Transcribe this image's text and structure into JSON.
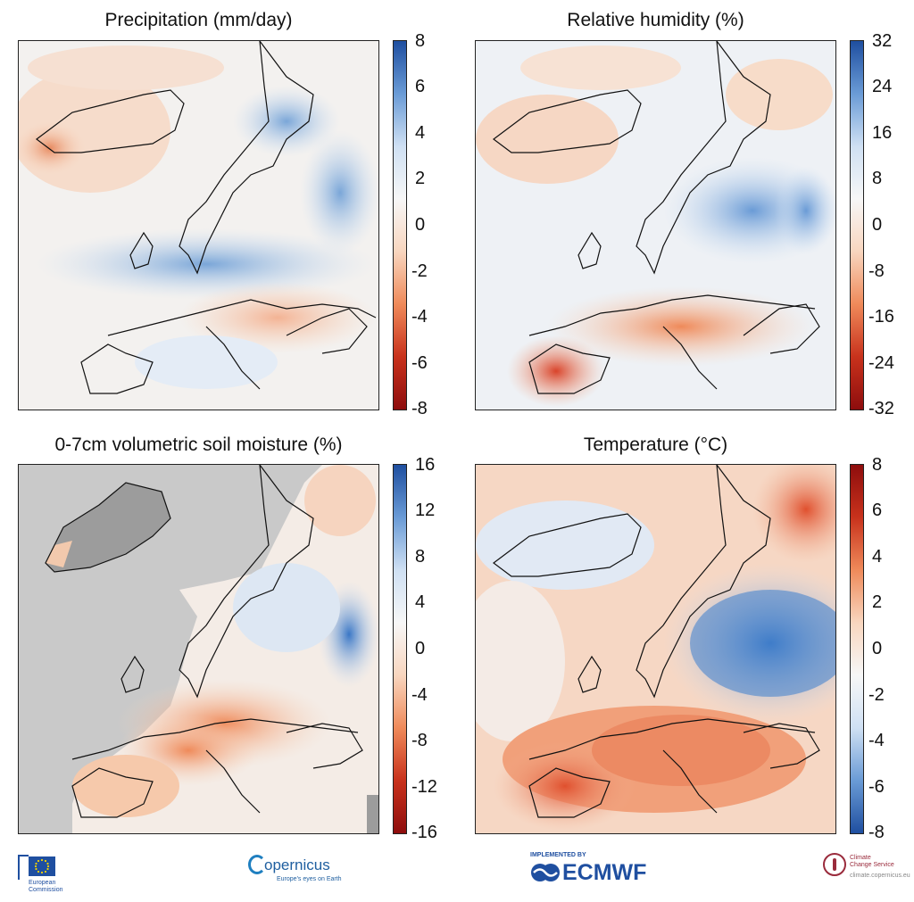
{
  "panels": [
    {
      "id": "precip",
      "title": "Precipitation (mm/day)",
      "colorbar": {
        "ticks": [
          "8",
          "6",
          "4",
          "2",
          "0",
          "-2",
          "-4",
          "-6",
          "-8"
        ],
        "top_color": "#1f4fa0",
        "bottom_color": "#8e0d0d",
        "orientation": "blue-top"
      }
    },
    {
      "id": "rh",
      "title": "Relative humidity (%)",
      "colorbar": {
        "ticks": [
          "32",
          "24",
          "16",
          "8",
          "0",
          "-8",
          "-16",
          "-24",
          "-32"
        ],
        "top_color": "#1f4fa0",
        "bottom_color": "#8e0d0d",
        "orientation": "blue-top"
      }
    },
    {
      "id": "soil",
      "title": "0-7cm volumetric soil moisture (%)",
      "colorbar": {
        "ticks": [
          "16",
          "12",
          "8",
          "4",
          "0",
          "-4",
          "-8",
          "-12",
          "-16"
        ],
        "top_color": "#1f4fa0",
        "bottom_color": "#8e0d0d",
        "orientation": "blue-top"
      }
    },
    {
      "id": "temp",
      "title": "Temperature (°C)",
      "colorbar": {
        "ticks": [
          "8",
          "6",
          "4",
          "2",
          "0",
          "-2",
          "-4",
          "-6",
          "-8"
        ],
        "top_color": "#8e0d0d",
        "bottom_color": "#1f4fa0",
        "orientation": "red-top"
      }
    }
  ],
  "footer": {
    "eu": {
      "line1": "European",
      "line2": "Commission"
    },
    "copernicus": {
      "name": "opernicus",
      "tagline": "Europe's eyes on Earth"
    },
    "ecmwf": {
      "implemented": "IMPLEMENTED BY",
      "name": "ECMWF"
    },
    "c3s": {
      "line1": "Climate",
      "line2": "Change Service",
      "url": "climate.copernicus.eu"
    }
  },
  "colors": {
    "blue": "#2f6fc0",
    "light_blue": "#cfe0f3",
    "white": "#f7f7f7",
    "light_orange": "#f8d6bf",
    "orange": "#ef8a5a",
    "red": "#c8321c",
    "grey": "#c9c9c9"
  }
}
